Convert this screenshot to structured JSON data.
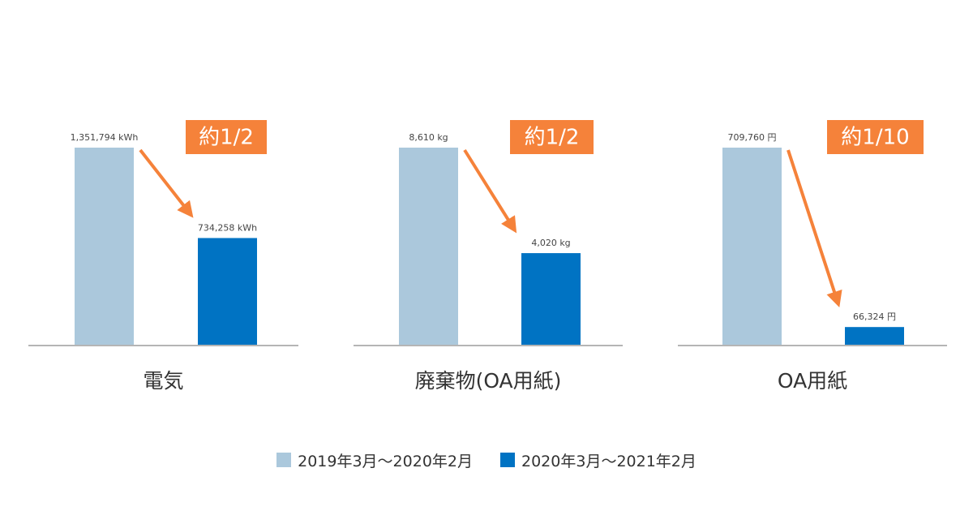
{
  "chart_data": [
    {
      "type": "bar",
      "category": "電気",
      "series": [
        {
          "name": "2019年3月～2020年2月",
          "value": 1351794,
          "label": "1,351,794 kWh"
        },
        {
          "name": "2020年3月～2021年2月",
          "value": 734258,
          "label": "734,258 kWh"
        }
      ],
      "annotation": "約1/2"
    },
    {
      "type": "bar",
      "category": "廃棄物(OA用紙)",
      "series": [
        {
          "name": "2019年3月～2020年2月",
          "value": 8610,
          "label": "8,610 kg"
        },
        {
          "name": "2020年3月～2021年2月",
          "value": 4020,
          "label": "4,020 kg"
        }
      ],
      "annotation": "約1/2"
    },
    {
      "type": "bar",
      "category": "OA用紙",
      "series": [
        {
          "name": "2019年3月～2020年2月",
          "value": 709760,
          "label": "709,760 円"
        },
        {
          "name": "2020年3月～2021年2月",
          "value": 66324,
          "label": "66,324 円"
        }
      ],
      "annotation": "約1/10"
    }
  ],
  "legend": [
    {
      "label": "2019年3月～2020年2月",
      "color": "#abc8dc"
    },
    {
      "label": "2020年3月～2021年2月",
      "color": "#0073c3"
    }
  ],
  "colors": {
    "before": "#abc8dc",
    "after": "#0073c3",
    "annotation_bg": "#f5823a",
    "arrow": "#f5823a",
    "axis": "#b5b5b5",
    "value_text": "#444444",
    "category_text": "#333333"
  }
}
